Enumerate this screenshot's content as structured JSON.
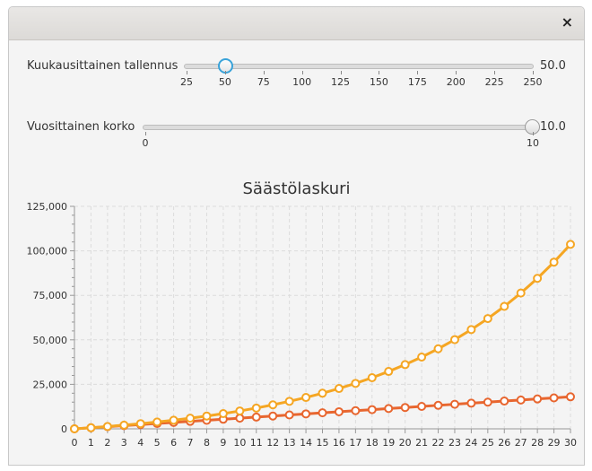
{
  "window": {
    "close_icon": "×"
  },
  "sliders": [
    {
      "label": "Kuukausittainen tallennus",
      "value_text": "50.0",
      "min": 25,
      "max": 250,
      "value": 50,
      "tick_labels": [
        "25",
        "50",
        "75",
        "100",
        "125",
        "150",
        "175",
        "200",
        "225",
        "250"
      ]
    },
    {
      "label": "Vuosittainen korko",
      "value_text": "10.0",
      "min": 0,
      "max": 10,
      "value": 10,
      "tick_labels": [
        "0",
        "10"
      ]
    }
  ],
  "chart_data": {
    "type": "line",
    "title": "Säästölaskuri",
    "xlabel": "",
    "ylabel": "",
    "x": [
      0,
      1,
      2,
      3,
      4,
      5,
      6,
      7,
      8,
      9,
      10,
      11,
      12,
      13,
      14,
      15,
      16,
      17,
      18,
      19,
      20,
      21,
      22,
      23,
      24,
      25,
      26,
      27,
      28,
      29,
      30
    ],
    "xlim": [
      0,
      30
    ],
    "ylim": [
      0,
      125000
    ],
    "y_tick_labels": [
      "0",
      "25,000",
      "50,000",
      "75,000",
      "100,000",
      "125,000"
    ],
    "x_tick_labels": [
      "0",
      "1",
      "2",
      "3",
      "4",
      "5",
      "6",
      "7",
      "8",
      "9",
      "10",
      "11",
      "12",
      "13",
      "14",
      "15",
      "16",
      "17",
      "18",
      "19",
      "20",
      "21",
      "22",
      "23",
      "24",
      "25",
      "26",
      "27",
      "28",
      "29",
      "30"
    ],
    "grid": true,
    "series": [
      {
        "color": "#e8662f",
        "values": [
          0,
          600,
          1200,
          1800,
          2400,
          3000,
          3600,
          4200,
          4800,
          5400,
          6000,
          6600,
          7200,
          7800,
          8400,
          9000,
          9600,
          10200,
          10800,
          11400,
          12000,
          12600,
          13200,
          13800,
          14400,
          15000,
          15600,
          16200,
          16800,
          17400,
          18000
        ]
      },
      {
        "color": "#f5a623",
        "values": [
          0,
          630,
          1323,
          2085,
          2924,
          3846,
          4861,
          5977,
          7205,
          8556,
          10041,
          11676,
          13473,
          15451,
          17626,
          20019,
          22650,
          25545,
          28730,
          32233,
          36086,
          40325,
          44987,
          50116,
          55758,
          61964,
          68790,
          76299,
          84559,
          93645,
          103640
        ]
      }
    ]
  }
}
